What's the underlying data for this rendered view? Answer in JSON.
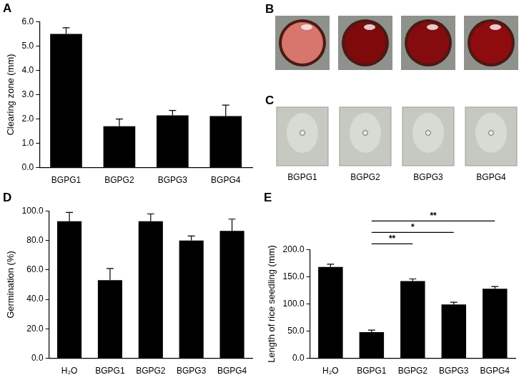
{
  "chart_data": [
    {
      "type": "bar",
      "title": "A",
      "ylabel": "Clearing zone (mm)",
      "categories": [
        "BGPG1",
        "BGPG2",
        "BGPG3",
        "BGPG4"
      ],
      "values": [
        5.5,
        1.7,
        2.15,
        2.12
      ],
      "errors": [
        0.25,
        0.3,
        0.2,
        0.45
      ],
      "color": "#000000",
      "ylim": [
        0,
        6
      ],
      "yticks": [
        {
          "value": 0,
          "label": "0.0"
        },
        {
          "value": 1,
          "label": "1.0"
        },
        {
          "value": 2,
          "label": "2.0"
        },
        {
          "value": 3,
          "label": "3.0"
        },
        {
          "value": 4,
          "label": "4.0"
        },
        {
          "value": 5,
          "label": "5.0"
        },
        {
          "value": 6,
          "label": "6.0"
        }
      ],
      "grid": false
    },
    {
      "type": "bar",
      "title": "D",
      "ylabel": "Germination (%)",
      "categories": [
        "H₂O",
        "BGPG1",
        "BGPG2",
        "BGPG3",
        "BGPG4"
      ],
      "values": [
        93,
        53,
        93,
        80,
        86.5
      ],
      "errors": [
        6,
        8,
        5,
        3,
        8
      ],
      "color": "#000000",
      "ylim": [
        0,
        100
      ],
      "yticks": [
        {
          "value": 0,
          "label": "0.0"
        },
        {
          "value": 20,
          "label": "20.0"
        },
        {
          "value": 40,
          "label": "40.0"
        },
        {
          "value": 60,
          "label": "60.0"
        },
        {
          "value": 80,
          "label": "80.0"
        },
        {
          "value": 100,
          "label": "100.0"
        }
      ],
      "grid": false
    },
    {
      "type": "bar",
      "title": "E",
      "ylabel": "Length of rice seedling (mm)",
      "categories": [
        "H₂O",
        "BGPG1",
        "BGPG2",
        "BGPG3",
        "BGPG4"
      ],
      "values": [
        168,
        48,
        142,
        99,
        128
      ],
      "errors": [
        5,
        4,
        4,
        4,
        4
      ],
      "color": "#000000",
      "ylim": [
        0,
        200
      ],
      "yticks": [
        {
          "value": 0,
          "label": "0.0"
        },
        {
          "value": 50,
          "label": "50.0"
        },
        {
          "value": 100,
          "label": "100.0"
        },
        {
          "value": 150,
          "label": "150.0"
        },
        {
          "value": 200,
          "label": "200.0"
        }
      ],
      "grid": false,
      "annotations": [
        {
          "from": "BGPG1",
          "to": "BGPG4",
          "label": "**"
        },
        {
          "from": "BGPG1",
          "to": "BGPG3",
          "label": "*"
        },
        {
          "from": "BGPG1",
          "to": "BGPG2",
          "label": "**"
        }
      ]
    }
  ],
  "photo_panels": {
    "titles": [
      "B",
      "C"
    ],
    "labels": [
      "BGPG1",
      "BGPG2",
      "BGPG3",
      "BGPG4"
    ]
  }
}
